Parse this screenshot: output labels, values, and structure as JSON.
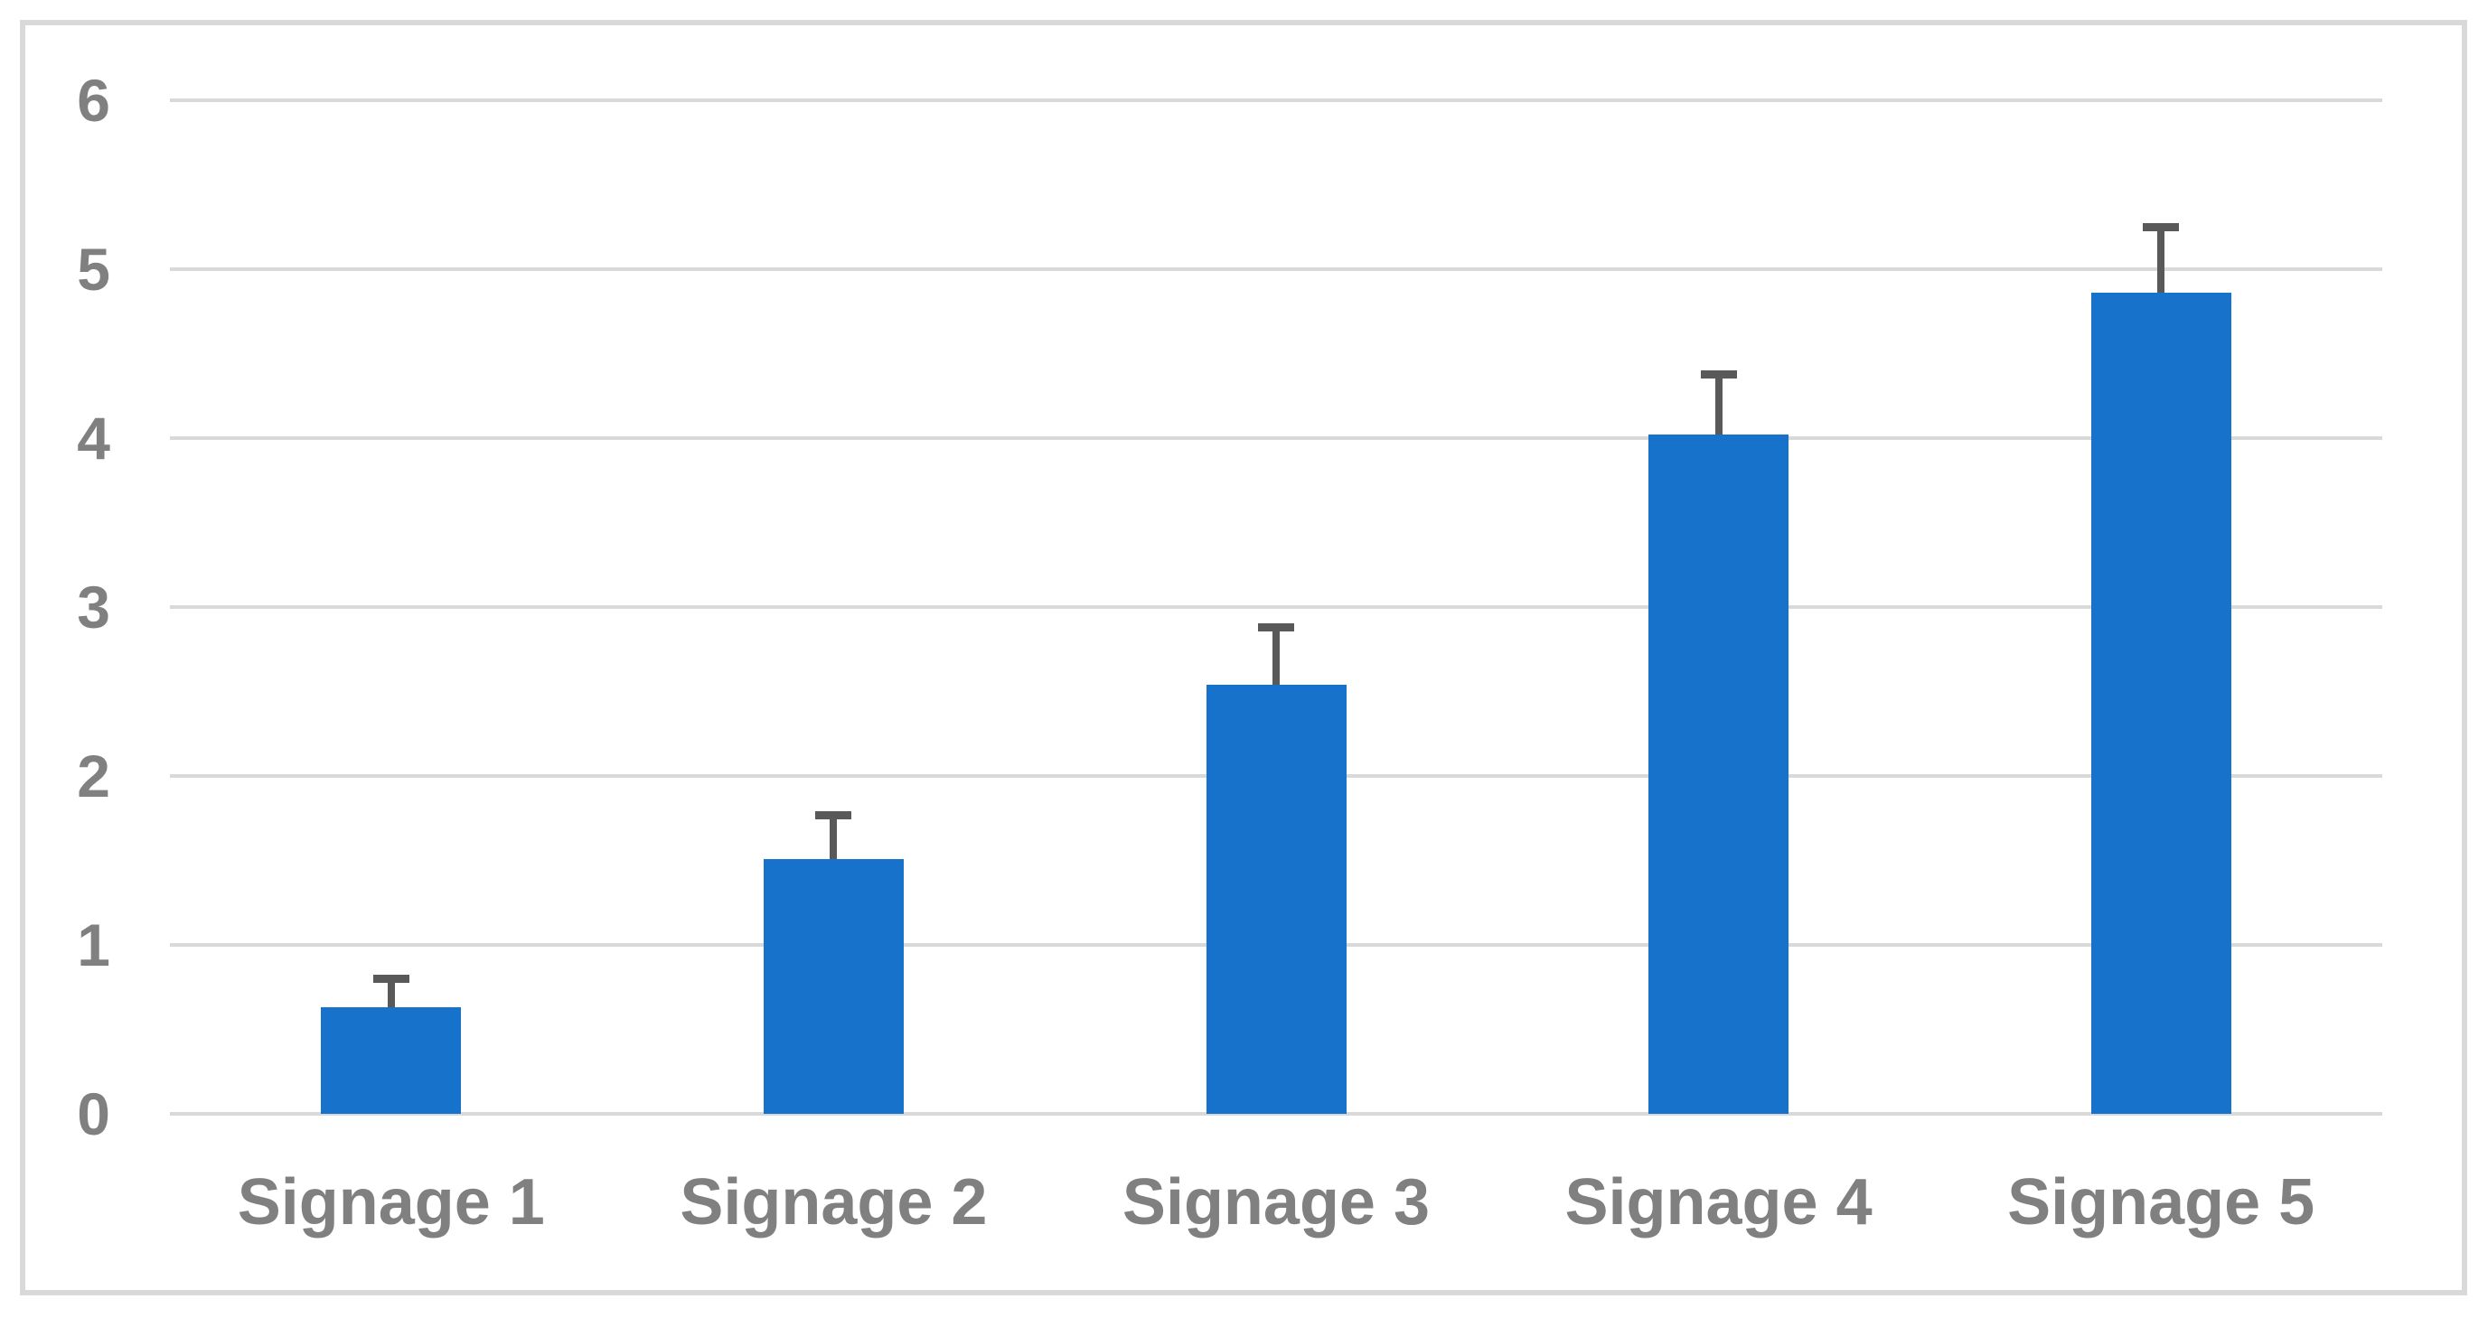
{
  "figure": {
    "background": "#FFFFFF",
    "frame_border_color": "#D9D9D9"
  },
  "chart_data": {
    "type": "bar",
    "title": "",
    "categories": [
      "Signage 1",
      "Signage 2",
      "Signage 3",
      "Signage 4",
      "Signage 5"
    ],
    "values": [
      0.63,
      1.51,
      2.54,
      4.02,
      4.86
    ],
    "errors_plus": [
      0.17,
      0.26,
      0.34,
      0.36,
      0.39
    ],
    "xlabel": "",
    "ylabel": "",
    "ylim": [
      0,
      6
    ],
    "yticks": [
      0,
      1,
      2,
      3,
      4,
      5,
      6
    ],
    "ytick_labels": [
      "0",
      "1",
      "2",
      "3",
      "4",
      "5",
      "6"
    ],
    "grid": true,
    "legend": false,
    "colors": {
      "bar": "#1772CC",
      "error_bar": "#595959",
      "gridline": "#D9D9D9",
      "tick_label": "#808080",
      "plot_border": "#D9D9D9"
    }
  }
}
